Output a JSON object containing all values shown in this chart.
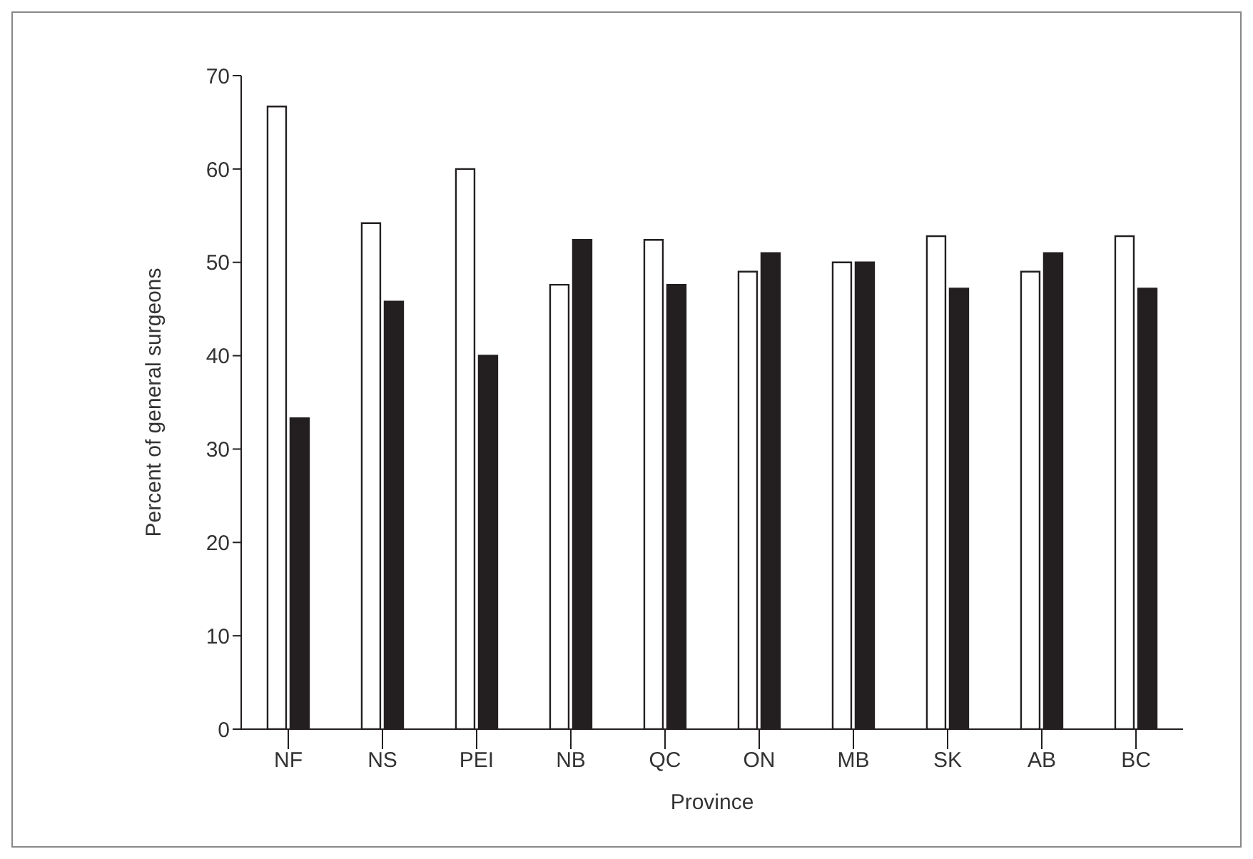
{
  "chart_data": {
    "type": "bar",
    "xlabel": "Province",
    "ylabel": "Percent of general surgeons",
    "categories": [
      "NF",
      "NS",
      "PEI",
      "NB",
      "QC",
      "ON",
      "MB",
      "SK",
      "AB",
      "BC"
    ],
    "series": [
      {
        "color": "#ffffff",
        "values": [
          66.7,
          54.2,
          60,
          47.6,
          52.4,
          49,
          50,
          52.8,
          49,
          52.8
        ]
      },
      {
        "color": "#231f20",
        "values": [
          33.3,
          45.8,
          40,
          52.4,
          47.6,
          51,
          50,
          47.2,
          51,
          47.2
        ]
      }
    ],
    "ylim": [
      0,
      70
    ],
    "yticks": [
      0,
      10,
      20,
      30,
      40,
      50,
      60,
      70
    ],
    "grid": false,
    "legend": false
  }
}
